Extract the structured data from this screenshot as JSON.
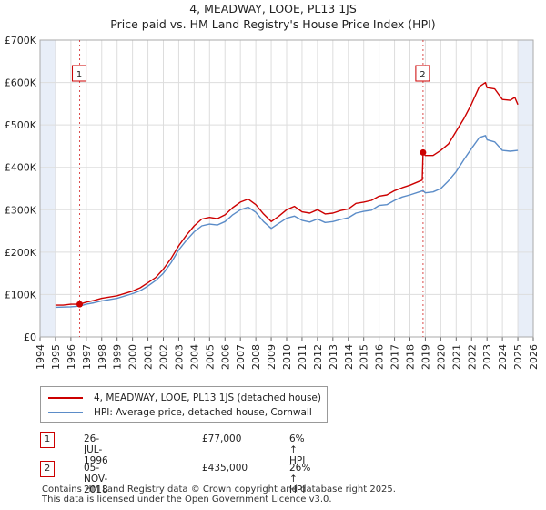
{
  "title_line1": "4, MEADWAY, LOOE, PL13 1JS",
  "title_line2": "Price paid vs. HM Land Registry's House Price Index (HPI)",
  "colors": {
    "property": "#cc0000",
    "hpi": "#5b8cc8",
    "band": "#e8eef8",
    "marker": "#cc0000"
  },
  "legend": {
    "property_label": "4, MEADWAY, LOOE, PL13 1JS (detached house)",
    "hpi_label": "HPI: Average price, detached house, Cornwall"
  },
  "sales": [
    {
      "num": "1",
      "date": "26-JUL-1996",
      "price": "£77,000",
      "hpi_delta": "6% ↑ HPI",
      "year": 1996.57,
      "value": 77000
    },
    {
      "num": "2",
      "date": "05-NOV-2018",
      "price": "£435,000",
      "hpi_delta": "26% ↑ HPI",
      "year": 2018.85,
      "value": 435000
    }
  ],
  "footer_line1": "Contains HM Land Registry data © Crown copyright and database right 2025.",
  "footer_line2": "This data is licensed under the Open Government Licence v3.0.",
  "chart_data": {
    "type": "line",
    "title": "Price paid vs. HM Land Registry's House Price Index (HPI)",
    "xlabel": "",
    "ylabel": "",
    "xlim": [
      1994,
      2026
    ],
    "ylim": [
      0,
      700000
    ],
    "y_ticks": [
      0,
      100000,
      200000,
      300000,
      400000,
      500000,
      600000,
      700000
    ],
    "y_tick_labels": [
      "£0",
      "£100K",
      "£200K",
      "£300K",
      "£400K",
      "£500K",
      "£600K",
      "£700K"
    ],
    "x_ticks": [
      1994,
      1995,
      1996,
      1997,
      1998,
      1999,
      2000,
      2001,
      2002,
      2003,
      2004,
      2005,
      2006,
      2007,
      2008,
      2009,
      2010,
      2011,
      2012,
      2013,
      2014,
      2015,
      2016,
      2017,
      2018,
      2019,
      2020,
      2021,
      2022,
      2023,
      2024,
      2025,
      2026
    ],
    "shaded_ranges": [
      [
        1994,
        1995
      ],
      [
        2025,
        2026
      ]
    ],
    "series": [
      {
        "name": "4, MEADWAY, LOOE, PL13 1JS (detached house)",
        "x": [
          1995,
          1995.5,
          1996,
          1996.57,
          1997,
          1997.5,
          1998,
          1999,
          2000,
          2000.5,
          2001,
          2001.5,
          2002,
          2002.5,
          2003,
          2003.5,
          2004,
          2004.5,
          2005,
          2005.5,
          2006,
          2006.5,
          2007,
          2007.5,
          2008,
          2008.5,
          2009,
          2009.5,
          2010,
          2010.5,
          2011,
          2011.5,
          2012,
          2012.5,
          2013,
          2013.5,
          2014,
          2014.5,
          2015,
          2015.5,
          2016,
          2016.5,
          2017,
          2017.5,
          2018,
          2018.8,
          2018.85,
          2019,
          2019.5,
          2020,
          2020.5,
          2021,
          2021.5,
          2022,
          2022.5,
          2022.9,
          2023,
          2023.5,
          2024,
          2024.5,
          2024.8,
          2025
        ],
        "values": [
          75000,
          75000,
          77000,
          77000,
          82000,
          86000,
          91000,
          97000,
          108000,
          116000,
          128000,
          140000,
          160000,
          185000,
          215000,
          240000,
          262000,
          278000,
          282000,
          279000,
          288000,
          305000,
          318000,
          325000,
          312000,
          290000,
          272000,
          285000,
          300000,
          308000,
          295000,
          292000,
          300000,
          290000,
          292000,
          298000,
          302000,
          315000,
          318000,
          322000,
          332000,
          335000,
          345000,
          352000,
          358000,
          370000,
          435000,
          428000,
          428000,
          440000,
          455000,
          485000,
          515000,
          550000,
          590000,
          600000,
          588000,
          585000,
          560000,
          558000,
          565000,
          548000
        ]
      },
      {
        "name": "HPI: Average price, detached house, Cornwall",
        "x": [
          1995,
          1995.5,
          1996,
          1996.57,
          1997,
          1997.5,
          1998,
          1999,
          2000,
          2000.5,
          2001,
          2001.5,
          2002,
          2002.5,
          2003,
          2003.5,
          2004,
          2004.5,
          2005,
          2005.5,
          2006,
          2006.5,
          2007,
          2007.5,
          2008,
          2008.5,
          2009,
          2009.5,
          2010,
          2010.5,
          2011,
          2011.5,
          2012,
          2012.5,
          2013,
          2013.5,
          2014,
          2014.5,
          2015,
          2015.5,
          2016,
          2016.5,
          2017,
          2017.5,
          2018,
          2018.85,
          2019,
          2019.5,
          2020,
          2020.5,
          2021,
          2021.5,
          2022,
          2022.5,
          2022.9,
          2023,
          2023.5,
          2024,
          2024.5,
          2025
        ],
        "values": [
          70000,
          70500,
          71000,
          72500,
          77000,
          80500,
          85000,
          91000,
          102000,
          109000,
          120000,
          133000,
          150000,
          175000,
          205000,
          228000,
          248000,
          262000,
          266000,
          264000,
          272000,
          288000,
          300000,
          306000,
          294000,
          272000,
          256000,
          268000,
          280000,
          285000,
          275000,
          271000,
          278000,
          270000,
          272000,
          277000,
          281000,
          292000,
          296000,
          299000,
          310000,
          312000,
          322000,
          330000,
          335000,
          345000,
          340000,
          342000,
          350000,
          368000,
          390000,
          418000,
          445000,
          470000,
          475000,
          465000,
          460000,
          440000,
          438000,
          440000
        ]
      }
    ]
  }
}
